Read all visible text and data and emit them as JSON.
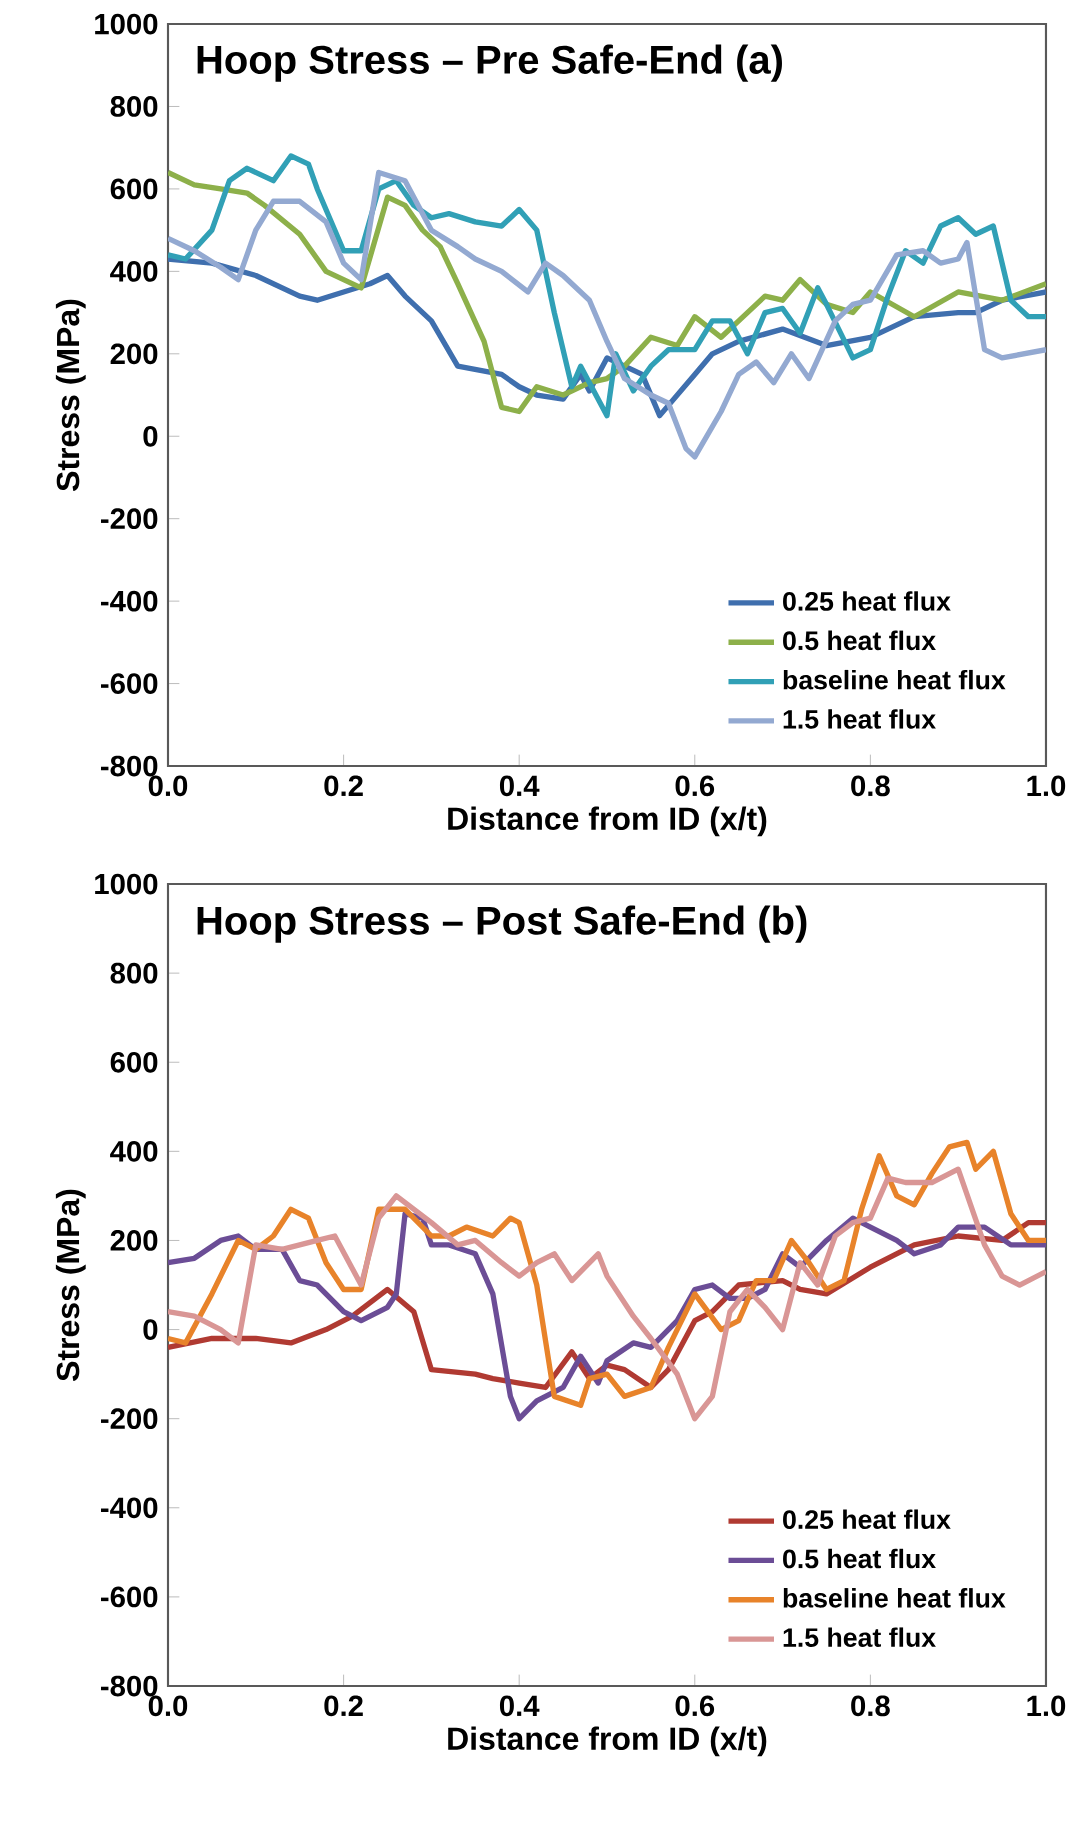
{
  "chart_data": [
    {
      "type": "line",
      "title": "Hoop Stress – Pre Safe-End (a)",
      "xlabel": "Distance from ID (x/t)",
      "ylabel": "Stress (MPa)",
      "xlim": [
        0,
        1
      ],
      "ylim": [
        -800,
        1000
      ],
      "xticks": [
        {
          "value": 0,
          "label": "0.0"
        },
        {
          "value": 0.2,
          "label": "0.2"
        },
        {
          "value": 0.4,
          "label": "0.4"
        },
        {
          "value": 0.6,
          "label": "0.6"
        },
        {
          "value": 0.8,
          "label": "0.8"
        },
        {
          "value": 1,
          "label": "1.0"
        }
      ],
      "yticks": [
        -800,
        -600,
        -400,
        -200,
        0,
        200,
        400,
        600,
        800,
        1000
      ],
      "grid": false,
      "legend": "bottom right",
      "marker": "none",
      "line_style": "solid",
      "series": [
        {
          "name": "0.25 heat flux",
          "color": "#3f6fae",
          "x": [
            0,
            0.05,
            0.1,
            0.15,
            0.17,
            0.2,
            0.23,
            0.25,
            0.27,
            0.3,
            0.33,
            0.38,
            0.4,
            0.42,
            0.45,
            0.47,
            0.48,
            0.5,
            0.52,
            0.54,
            0.56,
            0.6,
            0.62,
            0.65,
            0.7,
            0.75,
            0.8,
            0.85,
            0.9,
            0.92,
            0.95,
            1.0
          ],
          "values": [
            430,
            420,
            390,
            340,
            330,
            350,
            370,
            390,
            340,
            280,
            170,
            150,
            120,
            100,
            90,
            150,
            110,
            190,
            170,
            150,
            50,
            150,
            200,
            230,
            260,
            220,
            240,
            290,
            300,
            300,
            330,
            350
          ]
        },
        {
          "name": "0.5 heat flux",
          "color": "#8db04a",
          "x": [
            0,
            0.03,
            0.06,
            0.09,
            0.11,
            0.15,
            0.18,
            0.2,
            0.22,
            0.25,
            0.27,
            0.29,
            0.31,
            0.33,
            0.36,
            0.38,
            0.4,
            0.42,
            0.45,
            0.48,
            0.5,
            0.52,
            0.55,
            0.58,
            0.6,
            0.63,
            0.65,
            0.68,
            0.7,
            0.72,
            0.75,
            0.78,
            0.8,
            0.85,
            0.9,
            0.95,
            1.0
          ],
          "values": [
            640,
            610,
            600,
            590,
            560,
            490,
            400,
            380,
            360,
            580,
            560,
            500,
            460,
            370,
            230,
            70,
            60,
            120,
            100,
            130,
            140,
            170,
            240,
            220,
            290,
            240,
            280,
            340,
            330,
            380,
            320,
            300,
            350,
            290,
            350,
            330,
            370
          ]
        },
        {
          "name": "baseline heat flux",
          "color": "#31a0b6",
          "x": [
            0,
            0.02,
            0.05,
            0.07,
            0.09,
            0.12,
            0.14,
            0.16,
            0.17,
            0.2,
            0.22,
            0.24,
            0.26,
            0.28,
            0.3,
            0.32,
            0.35,
            0.38,
            0.4,
            0.42,
            0.44,
            0.46,
            0.47,
            0.5,
            0.51,
            0.53,
            0.55,
            0.57,
            0.6,
            0.62,
            0.64,
            0.66,
            0.68,
            0.7,
            0.72,
            0.74,
            0.75,
            0.78,
            0.8,
            0.82,
            0.84,
            0.86,
            0.88,
            0.9,
            0.92,
            0.94,
            0.96,
            0.98,
            1.0
          ],
          "values": [
            440,
            430,
            500,
            620,
            650,
            620,
            680,
            660,
            600,
            450,
            450,
            600,
            620,
            560,
            530,
            540,
            520,
            510,
            550,
            500,
            300,
            120,
            170,
            50,
            200,
            110,
            170,
            210,
            210,
            280,
            280,
            200,
            300,
            310,
            250,
            360,
            320,
            190,
            210,
            340,
            450,
            420,
            510,
            530,
            490,
            510,
            330,
            290,
            290
          ]
        },
        {
          "name": "1.5 heat flux",
          "color": "#93a9d1",
          "x": [
            0,
            0.03,
            0.06,
            0.08,
            0.1,
            0.12,
            0.15,
            0.18,
            0.2,
            0.22,
            0.24,
            0.27,
            0.3,
            0.33,
            0.35,
            0.38,
            0.41,
            0.43,
            0.45,
            0.48,
            0.5,
            0.52,
            0.55,
            0.57,
            0.59,
            0.6,
            0.63,
            0.65,
            0.67,
            0.69,
            0.71,
            0.73,
            0.76,
            0.78,
            0.8,
            0.83,
            0.86,
            0.88,
            0.9,
            0.91,
            0.93,
            0.95,
            1.0
          ],
          "values": [
            480,
            450,
            410,
            380,
            500,
            570,
            570,
            520,
            420,
            380,
            640,
            620,
            500,
            460,
            430,
            400,
            350,
            420,
            390,
            330,
            230,
            140,
            100,
            80,
            -30,
            -50,
            60,
            150,
            180,
            130,
            200,
            140,
            280,
            320,
            330,
            440,
            450,
            420,
            430,
            470,
            210,
            190,
            210
          ]
        }
      ]
    },
    {
      "type": "line",
      "title": "Hoop Stress – Post Safe-End (b)",
      "xlabel": "Distance from ID (x/t)",
      "ylabel": "Stress (MPa)",
      "xlim": [
        0,
        1
      ],
      "ylim": [
        -800,
        1000
      ],
      "xticks": [
        {
          "value": 0,
          "label": "0.0"
        },
        {
          "value": 0.2,
          "label": "0.2"
        },
        {
          "value": 0.4,
          "label": "0.4"
        },
        {
          "value": 0.6,
          "label": "0.6"
        },
        {
          "value": 0.8,
          "label": "0.8"
        },
        {
          "value": 1,
          "label": "1.0"
        }
      ],
      "yticks": [
        -800,
        -600,
        -400,
        -200,
        0,
        200,
        400,
        600,
        800,
        1000
      ],
      "grid": false,
      "legend": "bottom right",
      "marker": "none",
      "line_style": "solid",
      "series": [
        {
          "name": "0.25 heat flux",
          "color": "#b03a32",
          "x": [
            0,
            0.05,
            0.1,
            0.14,
            0.18,
            0.21,
            0.25,
            0.28,
            0.3,
            0.35,
            0.37,
            0.4,
            0.43,
            0.46,
            0.48,
            0.5,
            0.52,
            0.55,
            0.57,
            0.6,
            0.62,
            0.65,
            0.7,
            0.72,
            0.75,
            0.8,
            0.85,
            0.9,
            0.95,
            0.98,
            1.0
          ],
          "values": [
            -40,
            -20,
            -20,
            -30,
            0,
            30,
            90,
            40,
            -90,
            -100,
            -110,
            -120,
            -130,
            -50,
            -110,
            -80,
            -90,
            -130,
            -90,
            20,
            40,
            100,
            110,
            90,
            80,
            140,
            190,
            210,
            200,
            240,
            240
          ]
        },
        {
          "name": "0.5 heat flux",
          "color": "#6b4d96",
          "x": [
            0,
            0.03,
            0.06,
            0.08,
            0.1,
            0.13,
            0.15,
            0.17,
            0.2,
            0.22,
            0.25,
            0.26,
            0.27,
            0.29,
            0.3,
            0.32,
            0.35,
            0.37,
            0.39,
            0.4,
            0.42,
            0.45,
            0.47,
            0.49,
            0.5,
            0.53,
            0.55,
            0.58,
            0.6,
            0.62,
            0.64,
            0.66,
            0.68,
            0.7,
            0.72,
            0.75,
            0.78,
            0.8,
            0.83,
            0.85,
            0.88,
            0.9,
            0.93,
            0.96,
            1.0
          ],
          "values": [
            150,
            160,
            200,
            210,
            180,
            180,
            110,
            100,
            40,
            20,
            50,
            80,
            260,
            250,
            190,
            190,
            170,
            80,
            -150,
            -200,
            -160,
            -130,
            -60,
            -120,
            -70,
            -30,
            -40,
            20,
            90,
            100,
            70,
            70,
            90,
            170,
            140,
            200,
            250,
            230,
            200,
            170,
            190,
            230,
            230,
            190,
            190
          ]
        },
        {
          "name": "baseline heat flux",
          "color": "#e8832a",
          "x": [
            0,
            0.02,
            0.05,
            0.08,
            0.1,
            0.12,
            0.14,
            0.16,
            0.18,
            0.2,
            0.22,
            0.24,
            0.27,
            0.3,
            0.32,
            0.34,
            0.37,
            0.39,
            0.4,
            0.42,
            0.44,
            0.47,
            0.48,
            0.5,
            0.52,
            0.55,
            0.57,
            0.6,
            0.63,
            0.65,
            0.67,
            0.69,
            0.71,
            0.73,
            0.75,
            0.77,
            0.79,
            0.81,
            0.83,
            0.85,
            0.87,
            0.89,
            0.91,
            0.92,
            0.94,
            0.96,
            0.98,
            1.0
          ],
          "values": [
            -20,
            -30,
            80,
            200,
            180,
            210,
            270,
            250,
            150,
            90,
            90,
            270,
            270,
            210,
            210,
            230,
            210,
            250,
            240,
            100,
            -150,
            -170,
            -110,
            -100,
            -150,
            -130,
            -40,
            80,
            0,
            20,
            110,
            110,
            200,
            150,
            90,
            110,
            270,
            390,
            300,
            280,
            350,
            410,
            420,
            360,
            400,
            260,
            200,
            200
          ]
        },
        {
          "name": "1.5 heat flux",
          "color": "#d99695",
          "x": [
            0,
            0.03,
            0.06,
            0.08,
            0.1,
            0.13,
            0.17,
            0.19,
            0.22,
            0.24,
            0.26,
            0.3,
            0.33,
            0.35,
            0.38,
            0.4,
            0.42,
            0.44,
            0.46,
            0.49,
            0.5,
            0.53,
            0.55,
            0.58,
            0.6,
            0.62,
            0.64,
            0.66,
            0.68,
            0.7,
            0.72,
            0.74,
            0.76,
            0.78,
            0.8,
            0.82,
            0.84,
            0.87,
            0.89,
            0.9,
            0.93,
            0.95,
            0.97,
            1.0
          ],
          "values": [
            40,
            30,
            0,
            -30,
            190,
            180,
            200,
            210,
            100,
            250,
            300,
            240,
            190,
            200,
            150,
            120,
            150,
            170,
            110,
            170,
            120,
            30,
            -20,
            -100,
            -200,
            -150,
            40,
            90,
            50,
            0,
            150,
            100,
            210,
            240,
            250,
            340,
            330,
            330,
            350,
            360,
            190,
            120,
            100,
            130
          ]
        }
      ]
    }
  ]
}
